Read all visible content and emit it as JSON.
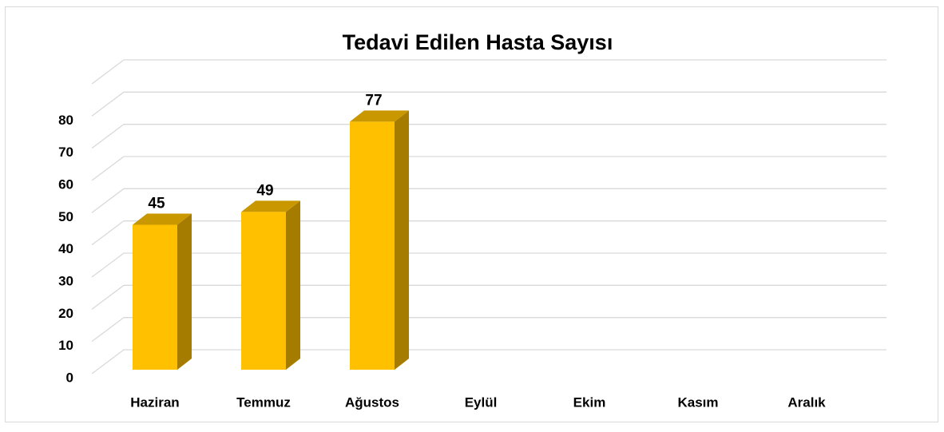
{
  "chart_data": {
    "type": "bar",
    "title": "Tedavi Edilen Hasta Sayısı",
    "categories": [
      "Haziran",
      "Temmuz",
      "Ağustos",
      "Eylül",
      "Ekim",
      "Kasım",
      "Aralık"
    ],
    "values": [
      45,
      49,
      77,
      null,
      null,
      null,
      null
    ],
    "color": "#ffc000",
    "ylim": [
      0,
      90
    ],
    "yticks": [
      0,
      10,
      20,
      30,
      40,
      50,
      60,
      70,
      80
    ],
    "grid": true
  }
}
